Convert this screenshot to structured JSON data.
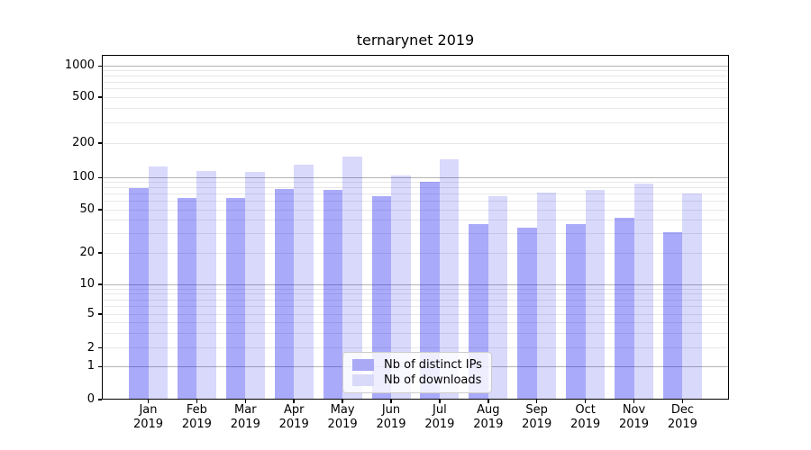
{
  "title": "ternarynet 2019",
  "chart_data": {
    "type": "bar",
    "title": "ternarynet 2019",
    "categories": [
      "Jan",
      "Feb",
      "Mar",
      "Apr",
      "May",
      "Jun",
      "Jul",
      "Aug",
      "Sep",
      "Oct",
      "Nov",
      "Dec"
    ],
    "x_year_label": "2019",
    "series": [
      {
        "name": "Nb of distinct IPs",
        "color": "#a9a9f5",
        "fill": "rgba(10,10,240,0.345)",
        "values": [
          80,
          64,
          65,
          78,
          76,
          67,
          91,
          37,
          34,
          37,
          42,
          31
        ]
      },
      {
        "name": "Nb of downloads",
        "color": "#d9d9fa",
        "fill": "rgba(10,10,235,0.155)",
        "values": [
          126,
          114,
          112,
          130,
          152,
          104,
          144,
          67,
          72,
          76,
          88,
          71
        ]
      }
    ],
    "xlabel": "",
    "ylabel": "",
    "yscale": "symlog",
    "ylim": [
      0,
      1270
    ],
    "yticks": [
      0,
      1,
      2,
      5,
      10,
      20,
      50,
      100,
      200,
      500,
      1000
    ],
    "grid": "horizontal major and log-minor gridlines",
    "legend_position": "lower center (inside plot)"
  },
  "colors": {
    "background": "#ffffff",
    "axis_spine": "#000000",
    "major_gridline": "#b4b4b4",
    "minor_gridline": "#e8e8e8",
    "legend_border": "#cccccc",
    "bar_distinct_ips": "#a9a9f5",
    "bar_downloads": "#d9d9fa"
  }
}
